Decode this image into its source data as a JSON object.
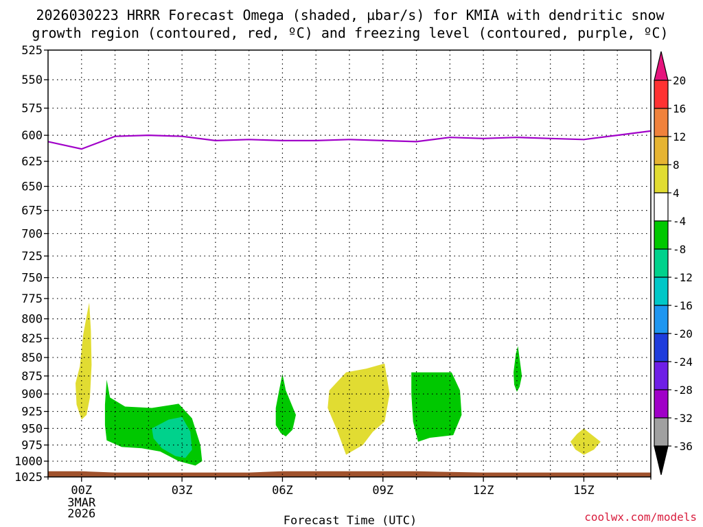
{
  "chart_data": {
    "type": "time-height contour",
    "title_line1": "2026030223 HRRR Forecast Omega (shaded, µbar/s) for KMIA with dendritic snow",
    "title_line2": "growth region (contoured, red, ºC) and freezing level (contoured, purple, ºC)",
    "xlabel": "Forecast Time (UTC)",
    "credit": "coolwx.com/models",
    "x_range_hours": [
      -1.0,
      17.0
    ],
    "y_range_hpa": [
      525,
      1025
    ],
    "y_ticks": [
      525,
      550,
      575,
      600,
      625,
      650,
      675,
      700,
      725,
      750,
      775,
      800,
      825,
      850,
      875,
      900,
      925,
      950,
      975,
      1000,
      1025
    ],
    "x_ticks": [
      {
        "hour": 0,
        "label": "00Z",
        "sub": [
          "3MAR",
          "2026"
        ]
      },
      {
        "hour": 3,
        "label": "03Z",
        "sub": []
      },
      {
        "hour": 6,
        "label": "06Z",
        "sub": []
      },
      {
        "hour": 9,
        "label": "09Z",
        "sub": []
      },
      {
        "hour": 12,
        "label": "12Z",
        "sub": []
      },
      {
        "hour": 15,
        "label": "15Z",
        "sub": []
      }
    ],
    "freezing_level": {
      "color": "#a000c8",
      "hours": [
        -1,
        0,
        1,
        2,
        3,
        4,
        5,
        6,
        7,
        8,
        9,
        10,
        11,
        12,
        13,
        14,
        15,
        16,
        17
      ],
      "pressure": [
        606,
        613,
        601,
        600,
        601,
        605,
        604,
        605,
        605,
        604,
        605,
        606,
        602,
        603,
        602,
        603,
        604,
        600,
        596
      ]
    },
    "terrain": {
      "color": "#a0522d",
      "hours": [
        -1,
        0,
        1,
        2,
        3,
        4,
        5,
        6,
        7,
        8,
        9,
        10,
        11,
        12,
        13,
        14,
        15,
        16,
        17
      ],
      "pressure": [
        1016,
        1016,
        1018,
        1018,
        1018,
        1018,
        1018,
        1016,
        1016,
        1016,
        1016,
        1016,
        1017,
        1018,
        1018,
        1018,
        1018,
        1018,
        1018
      ]
    },
    "omega_regions": [
      {
        "name": "yellow-plume-00z",
        "bin": "4 to 8",
        "color": "#e1dc32",
        "points": [
          [
            -0.05,
            862
          ],
          [
            0.05,
            820
          ],
          [
            0.18,
            790
          ],
          [
            0.23,
            780
          ],
          [
            0.28,
            815
          ],
          [
            0.3,
            860
          ],
          [
            0.25,
            905
          ],
          [
            0.15,
            930
          ],
          [
            0.0,
            937
          ],
          [
            -0.15,
            915
          ],
          [
            -0.18,
            885
          ]
        ]
      },
      {
        "name": "green-blob-02z",
        "bin": "-8 to -4",
        "color": "#00c800",
        "points": [
          [
            0.75,
            880
          ],
          [
            0.85,
            905
          ],
          [
            1.3,
            918
          ],
          [
            2.1,
            920
          ],
          [
            2.9,
            914
          ],
          [
            3.3,
            935
          ],
          [
            3.55,
            975
          ],
          [
            3.6,
            1000
          ],
          [
            3.4,
            1007
          ],
          [
            2.9,
            1000
          ],
          [
            2.35,
            985
          ],
          [
            1.8,
            980
          ],
          [
            1.2,
            978
          ],
          [
            0.75,
            968
          ],
          [
            0.7,
            945
          ],
          [
            0.7,
            915
          ]
        ]
      },
      {
        "name": "teal-core-02z",
        "bin": "-12 to -8",
        "color": "#00d28c",
        "points": [
          [
            2.1,
            950
          ],
          [
            2.6,
            937
          ],
          [
            3.0,
            933
          ],
          [
            3.25,
            955
          ],
          [
            3.3,
            982
          ],
          [
            3.1,
            995
          ],
          [
            2.8,
            992
          ],
          [
            2.4,
            980
          ],
          [
            2.15,
            965
          ]
        ]
      },
      {
        "name": "green-spike-06z",
        "bin": "-8 to -4",
        "color": "#00c800",
        "points": [
          [
            5.8,
            920
          ],
          [
            5.9,
            895
          ],
          [
            6.0,
            872
          ],
          [
            6.1,
            895
          ],
          [
            6.4,
            930
          ],
          [
            6.3,
            952
          ],
          [
            6.1,
            962
          ],
          [
            5.95,
            957
          ],
          [
            5.8,
            945
          ]
        ]
      },
      {
        "name": "yellow-blob-08z",
        "bin": "4 to 8",
        "color": "#e1dc32",
        "points": [
          [
            7.4,
            895
          ],
          [
            7.9,
            870
          ],
          [
            8.5,
            865
          ],
          [
            9.05,
            858
          ],
          [
            9.2,
            900
          ],
          [
            9.05,
            940
          ],
          [
            8.7,
            955
          ],
          [
            8.4,
            975
          ],
          [
            7.9,
            990
          ],
          [
            7.65,
            955
          ],
          [
            7.35,
            920
          ]
        ]
      },
      {
        "name": "green-box-10z",
        "bin": "-8 to -4",
        "color": "#00c800",
        "points": [
          [
            9.85,
            870
          ],
          [
            11.05,
            870
          ],
          [
            11.3,
            895
          ],
          [
            11.35,
            930
          ],
          [
            11.1,
            960
          ],
          [
            10.4,
            964
          ],
          [
            10.05,
            970
          ],
          [
            9.9,
            940
          ],
          [
            9.85,
            900
          ]
        ]
      },
      {
        "name": "green-spike-13z",
        "bin": "-8 to -4",
        "color": "#00c800",
        "points": [
          [
            12.9,
            870
          ],
          [
            12.97,
            845
          ],
          [
            13.03,
            835
          ],
          [
            13.1,
            858
          ],
          [
            13.15,
            875
          ],
          [
            13.08,
            890
          ],
          [
            13.0,
            897
          ],
          [
            12.92,
            887
          ]
        ]
      },
      {
        "name": "yellow-small-15z",
        "bin": "4 to 8",
        "color": "#e1dc32",
        "points": [
          [
            14.6,
            970
          ],
          [
            14.8,
            958
          ],
          [
            15.0,
            950
          ],
          [
            15.2,
            958
          ],
          [
            15.5,
            970
          ],
          [
            15.3,
            982
          ],
          [
            15.0,
            990
          ],
          [
            14.75,
            982
          ]
        ]
      }
    ],
    "colorbar": {
      "labels": [
        "20",
        "16",
        "12",
        "8",
        "4",
        "-4",
        "-8",
        "-12",
        "-16",
        "-20",
        "-24",
        "-28",
        "-32",
        "-36"
      ],
      "bins": [
        {
          "color": "#ff3232"
        },
        {
          "color": "#f0823c"
        },
        {
          "color": "#e6b432"
        },
        {
          "color": "#e1dc32"
        },
        {
          "color": "#ffffff"
        },
        {
          "color": "#00c800"
        },
        {
          "color": "#00d28c"
        },
        {
          "color": "#00c8c8"
        },
        {
          "color": "#1e96f0"
        },
        {
          "color": "#1e3cdc"
        },
        {
          "color": "#6e1ee6"
        },
        {
          "color": "#a000c8"
        },
        {
          "color": "#a0a0a0"
        }
      ],
      "top_arrow_color": "#e6147d",
      "bottom_arrow_color": "#000000"
    }
  }
}
